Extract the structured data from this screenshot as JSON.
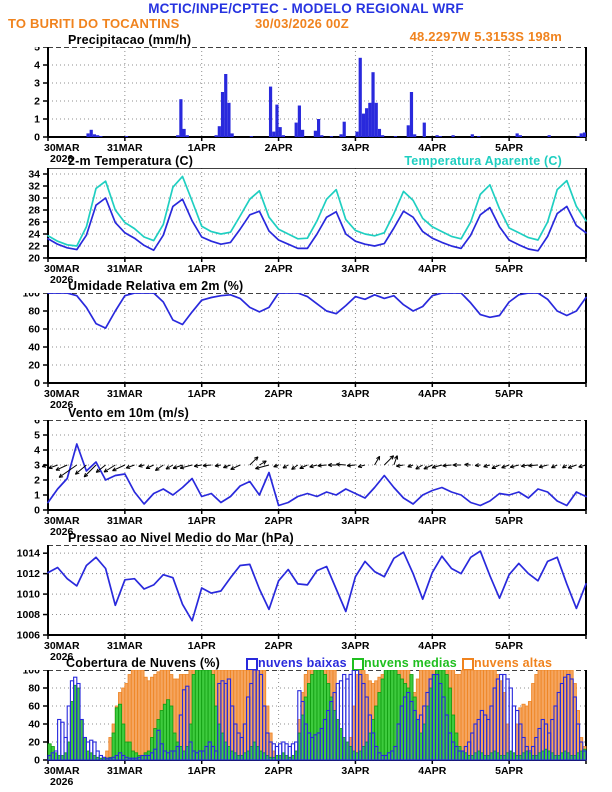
{
  "header": {
    "title": "MCTIC/INPE/CPTEC - MODELO REGIONAL WRF",
    "station": "TO BURITI DO TOCANTINS",
    "run": "30/03/2026 00Z",
    "location": "48.2297W 5.3153S 198m",
    "title_color": "#2633e0",
    "accent_color": "#f0831e"
  },
  "x_axis": {
    "labels": [
      "30MAR",
      "31MAR",
      "1APR",
      "2APR",
      "3APR",
      "4APR",
      "5APR"
    ],
    "label_hours": [
      0,
      24,
      48,
      72,
      96,
      120,
      144
    ],
    "year": "2026",
    "hours_total": 168
  },
  "chart_data": [
    {
      "id": "precip",
      "type": "bar",
      "title": "Precipitacao (mm/h)",
      "ylim": [
        0,
        5
      ],
      "yticks": [
        0,
        1,
        2,
        3,
        4,
        5
      ],
      "grid": true,
      "color": "#2929dc",
      "x_unit": "hours_since_30MAR_00Z",
      "step_hours": 1,
      "values": [
        0,
        0,
        0,
        0,
        0,
        0,
        0,
        0,
        0,
        0,
        0,
        0,
        0.2,
        0.4,
        0.15,
        0.1,
        0.05,
        0,
        0,
        0,
        0,
        0,
        0,
        0,
        0.05,
        0,
        0,
        0,
        0,
        0,
        0,
        0,
        0,
        0,
        0,
        0,
        0,
        0,
        0,
        0,
        0.1,
        2.1,
        0.45,
        0.1,
        0,
        0,
        0,
        0,
        0,
        0,
        0,
        0,
        0.1,
        0.6,
        2.5,
        3.5,
        1.9,
        0.2,
        0,
        0,
        0,
        0,
        0,
        0.05,
        0,
        0,
        0,
        0,
        0,
        2.8,
        0.3,
        1.8,
        0.55,
        0.1,
        0,
        0,
        0,
        0.8,
        1.75,
        0.4,
        0,
        0,
        0,
        0.35,
        1.0,
        0.1,
        0,
        0,
        0.05,
        0,
        0,
        0.15,
        0.85,
        0,
        0,
        0,
        0.3,
        4.4,
        1.3,
        1.6,
        1.9,
        3.6,
        1.9,
        0.45,
        0.1,
        0,
        0,
        0,
        0.05,
        0,
        0,
        0,
        0.65,
        2.5,
        0.15,
        0,
        0,
        0.8,
        0,
        0,
        0,
        0.1,
        0.05,
        0,
        0,
        0,
        0.1,
        0,
        0,
        0,
        0,
        0,
        0.15,
        0,
        0.05,
        0,
        0,
        0,
        0,
        0,
        0,
        0,
        0,
        0,
        0,
        0,
        0.2,
        0.1,
        0,
        0,
        0,
        0,
        0,
        0,
        0,
        0,
        0.1,
        0,
        0,
        0,
        0,
        0,
        0,
        0,
        0,
        0.05,
        0.2,
        0.25
      ]
    },
    {
      "id": "temp",
      "type": "line",
      "title": "2-m Temperatura (C)",
      "title2": "Temperatura Aparente (C)",
      "title2_color": "#1fcfc1",
      "ylim": [
        20,
        35
      ],
      "yticks": [
        20,
        22,
        24,
        26,
        28,
        30,
        32,
        34
      ],
      "step_hours": 3,
      "series": [
        {
          "name": "2-m Temperatura (C)",
          "color": "#2929dc",
          "values": [
            23.2,
            22.3,
            21.7,
            21.4,
            23.8,
            28.8,
            30.0,
            25.9,
            24.2,
            23.3,
            22.1,
            21.3,
            23.8,
            28.6,
            29.8,
            26.2,
            23.5,
            22.8,
            22.3,
            22.6,
            24.8,
            27.2,
            27.8,
            24.5,
            23.0,
            22.3,
            21.6,
            21.6,
            24.0,
            26.8,
            27.7,
            24.0,
            22.8,
            22.3,
            22.0,
            22.4,
            25.0,
            27.8,
            26.8,
            24.4,
            23.3,
            22.6,
            22.0,
            21.6,
            23.8,
            27.2,
            28.4,
            25.2,
            23.0,
            22.2,
            21.5,
            21.2,
            23.6,
            27.4,
            28.6,
            25.4,
            24.2
          ]
        },
        {
          "name": "Temperatura Aparente (C)",
          "color": "#1fcfc1",
          "values": [
            23.7,
            22.8,
            22.2,
            22.0,
            25.2,
            31.6,
            32.8,
            28.0,
            25.9,
            24.9,
            23.5,
            22.9,
            25.6,
            31.8,
            33.6,
            29.5,
            25.3,
            24.4,
            24.0,
            24.3,
            27.0,
            29.8,
            31.2,
            26.8,
            24.8,
            24.0,
            23.2,
            23.3,
            26.2,
            29.8,
            31.4,
            26.4,
            24.6,
            24.0,
            23.7,
            24.2,
            27.4,
            31.1,
            29.6,
            26.6,
            25.2,
            24.4,
            23.6,
            23.2,
            26.0,
            30.6,
            32.2,
            28.2,
            25.0,
            24.2,
            23.4,
            23.0,
            26.0,
            31.4,
            32.9,
            28.6,
            26.2
          ]
        }
      ]
    },
    {
      "id": "rh",
      "type": "line",
      "title": "Umidade Relativa em 2m (%)",
      "ylim": [
        0,
        100
      ],
      "yticks": [
        0,
        20,
        40,
        60,
        80,
        100
      ],
      "step_hours": 3,
      "series": [
        {
          "name": "Umidade Relativa",
          "color": "#2929dc",
          "values": [
            100,
            100,
            100,
            97,
            84,
            66,
            61,
            80,
            97,
            100,
            100,
            100,
            90,
            70,
            65,
            79,
            92,
            95,
            97,
            98,
            94,
            84,
            79,
            84,
            100,
            100,
            100,
            96,
            88,
            80,
            77,
            86,
            96,
            93,
            98,
            94,
            97,
            87,
            80,
            85,
            97,
            100,
            100,
            100,
            89,
            76,
            73,
            75,
            90,
            98,
            100,
            100,
            93,
            80,
            75,
            80,
            95
          ]
        }
      ]
    },
    {
      "id": "wind",
      "type": "line",
      "title": "Vento em 10m (m/s)",
      "ylim": [
        0,
        6
      ],
      "yticks": [
        0,
        1,
        2,
        3,
        4,
        5,
        6
      ],
      "step_hours": 3,
      "series": [
        {
          "name": "Velocidade do vento",
          "color": "#2929dc",
          "values": [
            0.5,
            1.4,
            2.1,
            4.4,
            2.6,
            3.2,
            2.0,
            2.3,
            2.4,
            1.2,
            0.4,
            1.1,
            1.4,
            1.0,
            1.5,
            2.1,
            0.9,
            1.1,
            0.5,
            0.9,
            1.6,
            1.9,
            1.0,
            2.5,
            0.3,
            0.5,
            0.9,
            1.1,
            0.9,
            1.2,
            1.0,
            1.4,
            1.1,
            0.8,
            1.5,
            2.3,
            1.5,
            0.8,
            0.4,
            1.0,
            1.3,
            1.5,
            1.2,
            1.0,
            0.5,
            0.3,
            0.6,
            1.1,
            1.0,
            1.2,
            0.8,
            1.4,
            1.2,
            0.6,
            0.3,
            1.2,
            0.9
          ]
        }
      ],
      "barbs": {
        "anchor_value": 3,
        "color": "#000000",
        "dirs_deg": [
          195,
          200,
          205,
          215,
          220,
          225,
          218,
          212,
          205,
          200,
          195,
          205,
          215,
          210,
          200,
          195,
          190,
          185,
          190,
          200,
          205,
          45,
          30,
          195,
          200,
          210,
          215,
          205,
          195,
          185,
          180,
          175,
          185,
          195,
          60,
          45,
          70,
          190,
          200,
          210,
          205,
          195,
          185,
          180,
          175,
          185,
          195,
          205,
          200,
          195,
          190,
          185,
          195,
          205,
          215,
          200,
          195
        ]
      }
    },
    {
      "id": "pressure",
      "type": "line",
      "title": "Pressao ao Nivel Medio do Mar (hPa)",
      "ylim": [
        1006,
        1014.8
      ],
      "yticks": [
        1006,
        1008,
        1010,
        1012,
        1014
      ],
      "step_hours": 3,
      "series": [
        {
          "name": "Pressao ao nivel do mar",
          "color": "#2929dc",
          "values": [
            1012.1,
            1012.6,
            1011.5,
            1010.8,
            1012.8,
            1013.6,
            1012.5,
            1008.9,
            1011.4,
            1011.5,
            1010.5,
            1010.9,
            1011.9,
            1011.6,
            1009.0,
            1007.4,
            1010.6,
            1010.1,
            1010.3,
            1011.6,
            1012.8,
            1012.9,
            1010.5,
            1008.5,
            1011.3,
            1012.4,
            1011.0,
            1010.9,
            1012.3,
            1012.7,
            1010.5,
            1008.3,
            1011.7,
            1013.2,
            1012.2,
            1011.7,
            1013.5,
            1014.1,
            1012.0,
            1009.5,
            1012.1,
            1013.7,
            1012.5,
            1012.0,
            1013.6,
            1014.2,
            1011.8,
            1009.6,
            1011.9,
            1013.0,
            1012.0,
            1011.3,
            1013.2,
            1013.6,
            1011.0,
            1008.6,
            1011.0
          ]
        }
      ]
    },
    {
      "id": "clouds",
      "type": "cloudbars",
      "title": "Cobertura de Nuvens (%)",
      "ylim": [
        0,
        100
      ],
      "yticks": [
        0,
        20,
        40,
        60,
        80,
        100
      ],
      "step_hours": 1,
      "legend": [
        {
          "label": "nuvens baixas",
          "color": "#2929dc"
        },
        {
          "label": "nuvens medias",
          "color": "#1fbf1f"
        },
        {
          "label": "nuvens altas",
          "color": "#f0831e"
        }
      ],
      "series": [
        {
          "name": "nuvens altas",
          "fill": "#f5a55f",
          "stroke": "#ee8422",
          "values": [
            0,
            0,
            0,
            0,
            0,
            0,
            0,
            0,
            0,
            0,
            0,
            0,
            0,
            0,
            0,
            0,
            0,
            0,
            10,
            25,
            40,
            60,
            75,
            80,
            85,
            95,
            100,
            100,
            100,
            100,
            92,
            88,
            92,
            95,
            98,
            100,
            100,
            100,
            95,
            90,
            90,
            95,
            95,
            95,
            100,
            100,
            100,
            100,
            100,
            100,
            100,
            100,
            100,
            100,
            100,
            100,
            100,
            100,
            100,
            100,
            100,
            100,
            100,
            100,
            100,
            100,
            100,
            100,
            60,
            30,
            10,
            5,
            3,
            2,
            2,
            3,
            5,
            10,
            45,
            75,
            95,
            100,
            100,
            100,
            100,
            100,
            100,
            100,
            100,
            100,
            40,
            25,
            20,
            15,
            25,
            60,
            95,
            100,
            100,
            95,
            88,
            85,
            88,
            92,
            95,
            100,
            100,
            100,
            100,
            100,
            100,
            100,
            100,
            55,
            75,
            90,
            100,
            100,
            100,
            100,
            100,
            100,
            100,
            100,
            100,
            100,
            100,
            95,
            95,
            100,
            100,
            100,
            100,
            100,
            100,
            100,
            100,
            100,
            100,
            100,
            95,
            88,
            75,
            40,
            5,
            5,
            40,
            58,
            62,
            60,
            65,
            85,
            95,
            100,
            100,
            100,
            100,
            100,
            100,
            100,
            100,
            100,
            100,
            100,
            85,
            55,
            25,
            15
          ]
        },
        {
          "name": "nuvens medias",
          "fill": "#3ecb3e",
          "stroke": "#0f9b0f",
          "values": [
            18,
            15,
            8,
            5,
            5,
            8,
            20,
            65,
            83,
            80,
            45,
            25,
            10,
            8,
            5,
            3,
            2,
            2,
            2,
            3,
            30,
            58,
            62,
            40,
            20,
            20,
            10,
            8,
            5,
            5,
            8,
            10,
            25,
            35,
            45,
            55,
            62,
            67,
            60,
            30,
            20,
            15,
            10,
            15,
            40,
            95,
            100,
            100,
            100,
            100,
            100,
            95,
            60,
            40,
            30,
            20,
            15,
            10,
            8,
            5,
            5,
            8,
            10,
            15,
            20,
            15,
            10,
            8,
            5,
            3,
            3,
            5,
            5,
            8,
            5,
            3,
            5,
            10,
            30,
            50,
            70,
            85,
            95,
            100,
            100,
            100,
            95,
            85,
            70,
            55,
            45,
            35,
            25,
            20,
            15,
            10,
            8,
            10,
            15,
            20,
            30,
            45,
            60,
            75,
            90,
            100,
            100,
            100,
            100,
            95,
            90,
            85,
            80,
            95,
            70,
            45,
            30,
            40,
            60,
            80,
            95,
            100,
            100,
            100,
            95,
            80,
            50,
            30,
            15,
            10,
            8,
            5,
            5,
            8,
            10,
            8,
            5,
            5,
            8,
            10,
            8,
            5,
            5,
            8,
            10,
            8,
            5,
            5,
            8,
            10,
            8,
            5,
            5,
            8,
            10,
            12,
            10,
            8,
            5,
            5,
            8,
            10,
            8,
            5,
            5,
            8,
            10,
            12
          ]
        },
        {
          "name": "nuvens baixas",
          "fill": "none",
          "stroke": "#2929dc",
          "values": [
            5,
            8,
            10,
            45,
            42,
            25,
            60,
            88,
            92,
            85,
            45,
            25,
            20,
            22,
            20,
            10,
            5,
            3,
            2,
            2,
            3,
            5,
            8,
            5,
            3,
            2,
            2,
            2,
            3,
            5,
            5,
            5,
            8,
            12,
            33,
            18,
            10,
            8,
            10,
            10,
            15,
            50,
            78,
            82,
            20,
            10,
            8,
            10,
            10,
            15,
            20,
            15,
            10,
            85,
            88,
            85,
            90,
            60,
            40,
            30,
            25,
            40,
            70,
            85,
            100,
            100,
            95,
            60,
            30,
            20,
            18,
            15,
            18,
            20,
            18,
            15,
            18,
            20,
            77,
            65,
            40,
            30,
            25,
            28,
            30,
            35,
            45,
            55,
            65,
            75,
            85,
            88,
            95,
            90,
            95,
            100,
            100,
            95,
            85,
            70,
            50,
            30,
            15,
            8,
            5,
            5,
            8,
            10,
            15,
            40,
            60,
            70,
            75,
            65,
            55,
            45,
            50,
            60,
            75,
            90,
            95,
            95,
            85,
            70,
            50,
            30,
            20,
            15,
            10,
            10,
            15,
            20,
            30,
            40,
            45,
            55,
            50,
            45,
            60,
            80,
            90,
            95,
            95,
            90,
            80,
            60,
            55,
            40,
            25,
            15,
            10,
            15,
            25,
            35,
            45,
            40,
            30,
            45,
            60,
            75,
            85,
            92,
            95,
            90,
            70,
            40,
            20,
            10
          ]
        }
      ]
    }
  ]
}
